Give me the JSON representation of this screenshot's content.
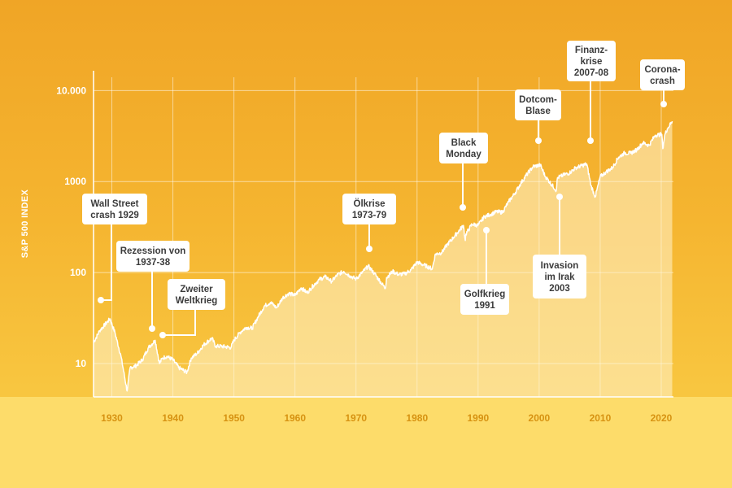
{
  "chart_data": {
    "type": "area",
    "ylabel": "S&P 500 INDEX",
    "xlabel": "",
    "yscale": "log",
    "ylim": [
      4.3,
      14000
    ],
    "xlim": [
      1927,
      2022
    ],
    "y_ticks": [
      {
        "value": 10,
        "label": "10"
      },
      {
        "value": 100,
        "label": "100"
      },
      {
        "value": 1000,
        "label": "1000"
      },
      {
        "value": 10000,
        "label": "10.000"
      }
    ],
    "x_ticks": [
      {
        "value": 1930,
        "label": "1930"
      },
      {
        "value": 1940,
        "label": "1940"
      },
      {
        "value": 1950,
        "label": "1950"
      },
      {
        "value": 1960,
        "label": "1960"
      },
      {
        "value": 1970,
        "label": "1970"
      },
      {
        "value": 1980,
        "label": "1980"
      },
      {
        "value": 1990,
        "label": "1990"
      },
      {
        "value": 2000,
        "label": "2000"
      },
      {
        "value": 2010,
        "label": "2010"
      },
      {
        "value": 2020,
        "label": "2020"
      }
    ],
    "grid": true,
    "series": [
      {
        "x": [
          1927,
          1928,
          1929.7,
          1930.5,
          1931.5,
          1932.5,
          1933,
          1934,
          1935,
          1936,
          1937.1,
          1937.8,
          1938.3,
          1939,
          1940,
          1941,
          1942.3,
          1943,
          1944,
          1945,
          1946.4,
          1947,
          1948,
          1949.5,
          1950,
          1951,
          1952,
          1953,
          1954,
          1955,
          1956,
          1957,
          1958,
          1959,
          1960,
          1961,
          1962,
          1963,
          1964,
          1965,
          1966,
          1967,
          1968,
          1969,
          1970,
          1971,
          1972,
          1973,
          1974.8,
          1975,
          1976,
          1977,
          1978,
          1979,
          1980,
          1981,
          1982.5,
          1983,
          1984,
          1985,
          1986,
          1987.6,
          1987.9,
          1988,
          1989,
          1990,
          1991,
          1992,
          1993,
          1994,
          1995,
          1996,
          1997,
          1998,
          1999,
          2000.2,
          2001,
          2002.8,
          2003,
          2004,
          2005,
          2006,
          2007.8,
          2008.5,
          2009.2,
          2010,
          2011,
          2012,
          2013,
          2014,
          2015,
          2016,
          2017,
          2018,
          2019,
          2020.1,
          2020.25,
          2020.6,
          2021,
          2021.8
        ],
        "values": [
          17,
          23,
          31,
          22,
          12,
          5,
          9,
          9.5,
          11,
          15,
          18,
          10,
          11.5,
          12,
          11,
          9,
          8,
          11.5,
          13,
          16,
          19,
          15.5,
          15.5,
          15,
          18,
          22,
          25,
          24.5,
          33,
          43,
          47,
          41,
          53,
          59,
          56,
          68,
          60,
          72,
          84,
          90,
          80,
          95,
          103,
          92,
          85,
          100,
          118,
          98,
          67,
          88,
          103,
          95,
          97,
          107,
          130,
          122,
          110,
          160,
          165,
          205,
          245,
          330,
          225,
          265,
          340,
          330,
          410,
          435,
          465,
          460,
          600,
          740,
          960,
          1200,
          1460,
          1520,
          1140,
          800,
          1100,
          1180,
          1250,
          1420,
          1560,
          900,
          680,
          1130,
          1280,
          1420,
          1850,
          2060,
          2050,
          2240,
          2670,
          2500,
          3230,
          3300,
          2300,
          3300,
          3800,
          4600
        ]
      }
    ],
    "annotations": [
      {
        "text": [
          "Wall Street",
          "crash 1929"
        ],
        "x": 1928.5,
        "y": 19
      },
      {
        "text": [
          "Rezession von",
          "1937-38"
        ],
        "x": 1937.2,
        "y": 14
      },
      {
        "text": [
          "Zweiter",
          "Weltkrieg"
        ],
        "x": 1938.8,
        "y": 10.5
      },
      {
        "text": [
          "Ölkrise",
          "1973-79"
        ],
        "x": 1972.6,
        "y": 60
      },
      {
        "text": [
          "Black",
          "Monday"
        ],
        "x": 1987.3,
        "y": 380
      },
      {
        "text": [
          "Golfkrieg",
          "1991"
        ],
        "x": 1990.8,
        "y": 240
      },
      {
        "text": [
          "Dotcom-",
          "Blase"
        ],
        "x": 1999.9,
        "y": 1700
      },
      {
        "text": [
          "Invasion",
          "im Irak",
          "2003"
        ],
        "x": 2002.9,
        "y": 700
      },
      {
        "text": [
          "Finanz-",
          "krise",
          "2007-08"
        ],
        "x": 2007.9,
        "y": 1650
      },
      {
        "text": [
          "Corona-",
          "crash"
        ],
        "x": 2020.0,
        "y": 4900
      }
    ],
    "colors": {
      "background_top": "#f0a526",
      "background_bottom": "#f8c640",
      "bottom_band": "#fddc6a",
      "line": "#ffffff",
      "area_fill": "#fff4cf",
      "x_tick_text": "#d79312",
      "callout_text": "#3b3b3b"
    }
  }
}
